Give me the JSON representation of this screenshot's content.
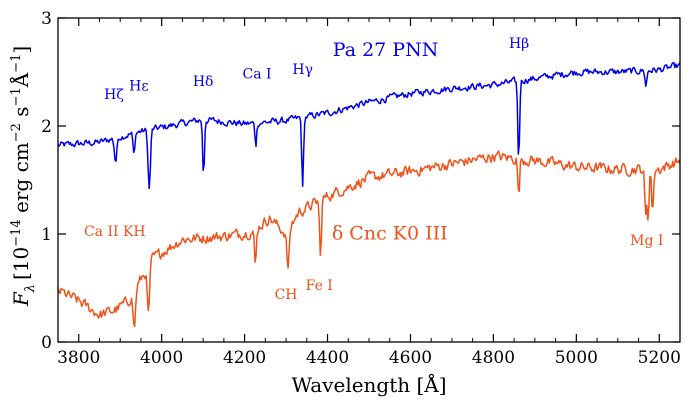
{
  "chart_data": {
    "type": "line",
    "xlabel": "Wavelength [Å]",
    "ylabel": "F_λ [10^-14 erg cm^-2 s^-1 Å^-1]",
    "ylabel_parts": {
      "F": "F",
      "lambda_sub": "λ",
      "open": "[10",
      "exp14": "−14",
      "erg_cm": " erg cm",
      "exp2": "−2",
      "s": " s",
      "exp1a": "−1",
      "angstrom": "Å",
      "exp1b": "−1",
      "close": "]"
    },
    "xlim": [
      3750,
      5250
    ],
    "ylim": [
      0,
      3
    ],
    "xticks": [
      3800,
      4000,
      4200,
      4400,
      4600,
      4800,
      5000,
      5200
    ],
    "xtick_labels": [
      "3800",
      "4000",
      "4200",
      "4400",
      "4600",
      "4800",
      "5000",
      "5200"
    ],
    "yticks": [
      0,
      1,
      2,
      3
    ],
    "ytick_labels": [
      "0",
      "1",
      "2",
      "3"
    ],
    "series": [
      {
        "name": "Pa 27 PNN",
        "color": "#0000ee",
        "baseline": [
          [
            3750,
            1.82
          ],
          [
            3850,
            1.85
          ],
          [
            3950,
            1.95
          ],
          [
            4100,
            2.06
          ],
          [
            4200,
            2.02
          ],
          [
            4300,
            2.05
          ],
          [
            4400,
            2.12
          ],
          [
            4500,
            2.22
          ],
          [
            4600,
            2.3
          ],
          [
            4700,
            2.35
          ],
          [
            4800,
            2.38
          ],
          [
            4900,
            2.44
          ],
          [
            5000,
            2.5
          ],
          [
            5100,
            2.5
          ],
          [
            5200,
            2.52
          ],
          [
            5250,
            2.56
          ]
        ],
        "absorption_lines": [
          {
            "center": 3889,
            "depth": 0.22,
            "width": 4
          },
          {
            "center": 3933,
            "depth": 0.2,
            "width": 3
          },
          {
            "center": 3970,
            "depth": 0.55,
            "width": 4
          },
          {
            "center": 4101,
            "depth": 0.52,
            "width": 3
          },
          {
            "center": 4227,
            "depth": 0.2,
            "width": 3
          },
          {
            "center": 4340,
            "depth": 0.65,
            "width": 3
          },
          {
            "center": 4861,
            "depth": 0.75,
            "width": 3
          },
          {
            "center": 5168,
            "depth": 0.15,
            "width": 3
          }
        ],
        "noise": 0.05
      },
      {
        "name": "δ Cnc K0 III",
        "color": "#f0521a",
        "baseline": [
          [
            3750,
            0.48
          ],
          [
            3800,
            0.38
          ],
          [
            3850,
            0.25
          ],
          [
            3890,
            0.3
          ],
          [
            3920,
            0.38
          ],
          [
            3980,
            0.78
          ],
          [
            4050,
            0.95
          ],
          [
            4150,
            0.98
          ],
          [
            4220,
            1.02
          ],
          [
            4260,
            1.15
          ],
          [
            4300,
            1.0
          ],
          [
            4330,
            1.2
          ],
          [
            4400,
            1.35
          ],
          [
            4500,
            1.52
          ],
          [
            4600,
            1.58
          ],
          [
            4700,
            1.65
          ],
          [
            4800,
            1.72
          ],
          [
            4900,
            1.68
          ],
          [
            5000,
            1.62
          ],
          [
            5100,
            1.6
          ],
          [
            5200,
            1.6
          ],
          [
            5250,
            1.68
          ]
        ],
        "absorption_lines": [
          {
            "center": 3934,
            "depth": 0.35,
            "width": 4
          },
          {
            "center": 3968,
            "depth": 0.45,
            "width": 4
          },
          {
            "center": 4226,
            "depth": 0.35,
            "width": 3
          },
          {
            "center": 4305,
            "depth": 0.35,
            "width": 4
          },
          {
            "center": 4383,
            "depth": 0.55,
            "width": 3
          },
          {
            "center": 4861,
            "depth": 0.35,
            "width": 3
          },
          {
            "center": 5167,
            "depth": 0.45,
            "width": 3
          },
          {
            "center": 5173,
            "depth": 0.45,
            "width": 3
          },
          {
            "center": 5184,
            "depth": 0.42,
            "width": 3
          }
        ],
        "noise": 0.08
      }
    ],
    "annotations": [
      {
        "text": "Pa 27 PNN",
        "x": 4540,
        "y": 2.65,
        "color": "#0000ee",
        "size": "large"
      },
      {
        "text": "δ Cnc K0 III",
        "x": 4550,
        "y": 0.95,
        "color": "#f0521a",
        "size": "large"
      },
      {
        "text": "Hζ",
        "x": 3885,
        "y": 2.25,
        "color": "#0000ee",
        "size": "small"
      },
      {
        "text": "Hε",
        "x": 3945,
        "y": 2.33,
        "color": "#0000ee",
        "size": "small"
      },
      {
        "text": "Hδ",
        "x": 4100,
        "y": 2.37,
        "color": "#0000ee",
        "size": "small"
      },
      {
        "text": "Ca I",
        "x": 4230,
        "y": 2.44,
        "color": "#0000ee",
        "size": "small"
      },
      {
        "text": "Hγ",
        "x": 4340,
        "y": 2.48,
        "color": "#0000ee",
        "size": "small"
      },
      {
        "text": "Hβ",
        "x": 4862,
        "y": 2.72,
        "color": "#0000ee",
        "size": "small"
      },
      {
        "text": "Ca II KH",
        "x": 3887,
        "y": 0.98,
        "color": "#f0521a",
        "size": "small"
      },
      {
        "text": "CH",
        "x": 4300,
        "y": 0.4,
        "color": "#f0521a",
        "size": "small"
      },
      {
        "text": "Fe I",
        "x": 4380,
        "y": 0.48,
        "color": "#f0521a",
        "size": "small"
      },
      {
        "text": "Mg I",
        "x": 5170,
        "y": 0.9,
        "color": "#f0521a",
        "size": "small"
      }
    ]
  }
}
